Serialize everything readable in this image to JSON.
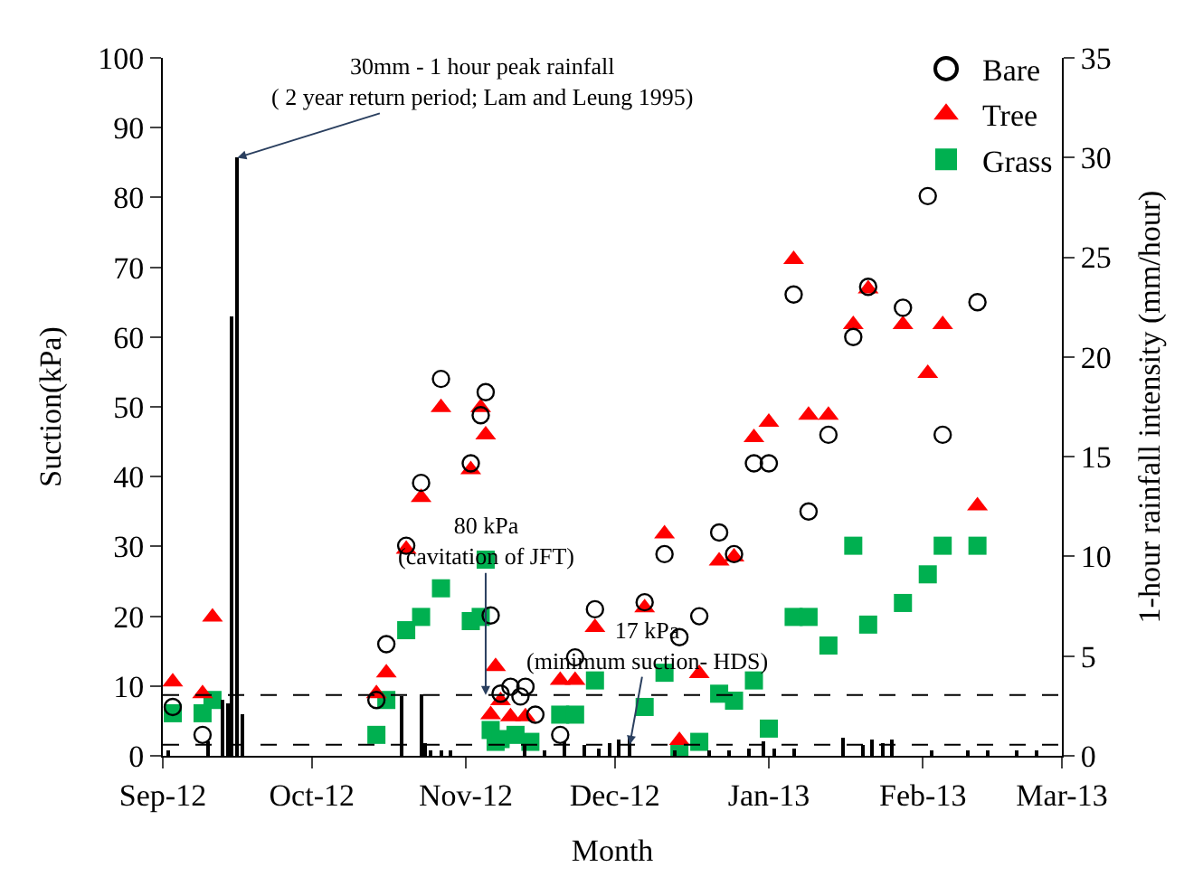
{
  "chart_data": {
    "type": "scatter",
    "xlabel": "Month",
    "ylabel": "Suction(kPa)",
    "y2label": "1-hour rainfall intensity (mm/hour)",
    "xlim": [
      "2012-09-01",
      "2013-03-01"
    ],
    "xticks": [
      {
        "value": "2012-09-01",
        "label": "Sep-12"
      },
      {
        "value": "2012-10-01",
        "label": "Oct-12"
      },
      {
        "value": "2012-11-01",
        "label": "Nov-12"
      },
      {
        "value": "2012-12-01",
        "label": "Dec-12"
      },
      {
        "value": "2013-01-01",
        "label": "Jan-13"
      },
      {
        "value": "2013-02-01",
        "label": "Feb-13"
      },
      {
        "value": "2013-03-01",
        "label": "Mar-13"
      }
    ],
    "ylim": [
      0,
      100
    ],
    "yticks": [
      0,
      10,
      20,
      30,
      40,
      50,
      60,
      70,
      80,
      90,
      100
    ],
    "y2lim": [
      0,
      35
    ],
    "y2ticks": [
      0,
      5,
      10,
      15,
      20,
      25,
      30,
      35
    ],
    "legend": "top right",
    "series": [
      {
        "name": "Bare",
        "marker": "circle",
        "color": "#000000",
        "x": [
          "2012-09-03",
          "2012-09-09",
          "2012-10-14",
          "2012-10-16",
          "2012-10-20",
          "2012-10-23",
          "2012-10-27",
          "2012-11-02",
          "2012-11-04",
          "2012-11-05",
          "2012-11-06",
          "2012-11-08",
          "2012-11-10",
          "2012-11-12",
          "2012-11-13",
          "2012-11-15",
          "2012-11-20",
          "2012-11-23",
          "2012-11-27",
          "2012-12-07",
          "2012-12-11",
          "2012-12-14",
          "2012-12-18",
          "2012-12-22",
          "2012-12-25",
          "2012-12-29",
          "2013-01-01",
          "2013-01-06",
          "2013-01-09",
          "2013-01-13",
          "2013-01-18",
          "2013-01-21",
          "2013-01-28",
          "2013-02-02",
          "2013-02-05",
          "2013-02-12"
        ],
        "values": [
          7.0,
          3.0,
          8.0,
          16.0,
          30.1,
          39.1,
          54.0,
          41.9,
          48.8,
          52.1,
          20.1,
          8.9,
          9.9,
          8.5,
          9.9,
          5.9,
          3.0,
          14.1,
          21.0,
          22.0,
          28.9,
          17.0,
          20.0,
          32.0,
          28.9,
          41.9,
          41.9,
          66.1,
          35.0,
          46.0,
          60.0,
          67.2,
          64.2,
          80.2,
          46.0,
          65.0
        ]
      },
      {
        "name": "Tree",
        "marker": "triangle",
        "color": "#ff0000",
        "x": [
          "2012-09-03",
          "2012-09-09",
          "2012-09-11",
          "2012-10-14",
          "2012-10-16",
          "2012-10-20",
          "2012-10-23",
          "2012-10-27",
          "2012-11-02",
          "2012-11-04",
          "2012-11-05",
          "2012-11-06",
          "2012-11-07",
          "2012-11-08",
          "2012-11-10",
          "2012-11-13",
          "2012-11-20",
          "2012-11-23",
          "2012-11-27",
          "2012-12-07",
          "2012-12-11",
          "2012-12-14",
          "2012-12-18",
          "2012-12-22",
          "2012-12-25",
          "2012-12-29",
          "2013-01-01",
          "2013-01-06",
          "2013-01-09",
          "2013-01-13",
          "2013-01-18",
          "2013-01-21",
          "2013-01-28",
          "2013-02-02",
          "2013-02-05",
          "2013-02-12"
        ],
        "values": [
          10.6,
          8.9,
          19.9,
          8.9,
          11.9,
          29.6,
          37.0,
          49.9,
          41.0,
          49.9,
          46.0,
          5.9,
          12.8,
          7.9,
          5.6,
          5.6,
          10.8,
          10.8,
          18.4,
          21.2,
          31.8,
          2.2,
          11.8,
          27.9,
          28.5,
          45.6,
          47.8,
          71.1,
          48.8,
          48.8,
          61.8,
          66.9,
          61.8,
          54.8,
          61.8,
          35.8
        ]
      },
      {
        "name": "Grass",
        "marker": "square",
        "color": "#00b050",
        "x": [
          "2012-09-03",
          "2012-09-09",
          "2012-09-11",
          "2012-10-14",
          "2012-10-16",
          "2012-10-20",
          "2012-10-23",
          "2012-10-27",
          "2012-11-02",
          "2012-11-04",
          "2012-11-05",
          "2012-11-06",
          "2012-11-07",
          "2012-11-08",
          "2012-11-11",
          "2012-11-14",
          "2012-11-20",
          "2012-11-23",
          "2012-11-27",
          "2012-12-07",
          "2012-12-11",
          "2012-12-14",
          "2012-12-18",
          "2012-12-22",
          "2012-12-25",
          "2012-12-29",
          "2013-01-01",
          "2013-01-06",
          "2013-01-09",
          "2013-01-13",
          "2013-01-18",
          "2013-01-21",
          "2013-01-28",
          "2013-02-02",
          "2013-02-05",
          "2013-02-12"
        ],
        "values": [
          6.1,
          6.1,
          8.0,
          3.0,
          8.0,
          18.0,
          19.9,
          24.0,
          19.3,
          19.9,
          28.1,
          3.7,
          2.0,
          2.4,
          3.0,
          2.0,
          5.9,
          5.9,
          10.8,
          7.0,
          11.9,
          0.3,
          2.0,
          8.9,
          7.9,
          10.8,
          3.9,
          19.9,
          19.9,
          15.8,
          30.1,
          18.8,
          21.9,
          26.0,
          30.1,
          30.1
        ]
      },
      {
        "type": "bar",
        "axis": "y2",
        "color": "#000000",
        "x": [
          "2012-09-02",
          "2012-09-10",
          "2012-09-13",
          "2012-09-14",
          "2012-09-15",
          "2012-09-16",
          "2012-09-17",
          "2012-10-19",
          "2012-10-23",
          "2012-10-24",
          "2012-10-25",
          "2012-10-27",
          "2012-10-29",
          "2012-11-13",
          "2012-11-17",
          "2012-11-21",
          "2012-11-25",
          "2012-11-28",
          "2012-11-30",
          "2012-12-02",
          "2012-12-04",
          "2012-12-13",
          "2012-12-20",
          "2012-12-24",
          "2012-12-28",
          "2012-12-31",
          "2013-01-02",
          "2013-01-06",
          "2013-01-16",
          "2013-01-20",
          "2013-01-22",
          "2013-01-24",
          "2013-01-26",
          "2013-02-03",
          "2013-02-10",
          "2013-02-14",
          "2013-02-20",
          "2013-02-24"
        ],
        "values": [
          0.3,
          0.7,
          2.8,
          2.6,
          22,
          30,
          2.1,
          3.0,
          3.1,
          0.6,
          0.3,
          0.3,
          0.3,
          0.5,
          0.3,
          0.7,
          0.5,
          0.4,
          0.6,
          0.8,
          0.9,
          0.3,
          0.3,
          0.3,
          0.4,
          0.7,
          0.4,
          0.4,
          0.9,
          0.5,
          0.8,
          0.6,
          0.8,
          0.3,
          0.3,
          0.3,
          0.3,
          0.3
        ]
      }
    ],
    "ref_lines": [
      {
        "axis": "y",
        "value": 8.7,
        "line_style": "dashed",
        "color": "#000000"
      },
      {
        "axis": "y",
        "value": 1.6,
        "line_style": "dashed",
        "color": "#000000"
      }
    ],
    "annotations": [
      {
        "text": "30mm - 1 hour peak rainfall\n( 2 year return period; Lam and Leung 1995)",
        "x": "2012-09-16",
        "y": 85.7
      },
      {
        "text": "80 kPa\n(cavitation of JFT)",
        "x": "2012-11-05",
        "y": 8.7
      },
      {
        "text": "17 kPa\n(minimum suction- HDS)",
        "x": "2012-12-04",
        "y": 1.6
      }
    ]
  }
}
